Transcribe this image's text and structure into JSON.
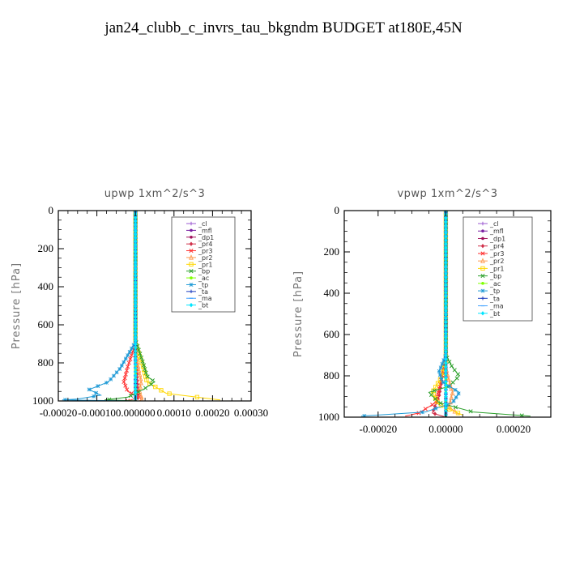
{
  "title": "jan24_clubb_c_invrs_tau_bkgndm  BUDGET at180E,45N",
  "chart_data": [
    {
      "type": "line",
      "panel_title": "upwp   1xm^2/s^3",
      "ylabel": "Pressure [hPa]",
      "ylim": [
        1000,
        0
      ],
      "xlim": [
        -0.0002,
        0.0003
      ],
      "xticks": [
        -0.0002,
        -0.0001,
        0.0,
        0.0001,
        0.0002,
        0.0003
      ],
      "xtick_labels": [
        "-0.00020",
        "-0.00010",
        "0.000000",
        "0.00010",
        "0.00020",
        "0.00030"
      ],
      "yticks": [
        0,
        200,
        400,
        600,
        800,
        1000
      ],
      "ytick_labels": [
        "0",
        "200",
        "400",
        "600",
        "800",
        "1000"
      ],
      "legend_position": "top-right",
      "series": [
        {
          "name": "_cl",
          "color": "#9b59d0",
          "marker": "plus",
          "points": [
            [
              0,
              0
            ],
            [
              0,
              1000
            ]
          ]
        },
        {
          "name": "_mfl",
          "color": "#7a1fa2",
          "marker": "dot",
          "points": [
            [
              0,
              0
            ],
            [
              0,
              1000
            ]
          ]
        },
        {
          "name": "_dp1",
          "color": "#a0105a",
          "marker": "dot",
          "points": [
            [
              0,
              0
            ],
            [
              0,
              1000
            ]
          ]
        },
        {
          "name": "_pr4",
          "color": "#d0304a",
          "marker": "diamond",
          "points": [
            [
              0,
              0
            ],
            [
              0,
              680
            ],
            [
              2e-06,
              760
            ],
            [
              5e-06,
              900
            ],
            [
              8e-06,
              980
            ],
            [
              0,
              1000
            ]
          ]
        },
        {
          "name": "_pr3",
          "color": "#ff3030",
          "marker": "cross",
          "points": [
            [
              0,
              0
            ],
            [
              0,
              700
            ],
            [
              -1e-05,
              760
            ],
            [
              -2e-05,
              820
            ],
            [
              -3e-05,
              900
            ],
            [
              -2e-05,
              950
            ],
            [
              1e-05,
              980
            ],
            [
              -2e-05,
              1000
            ]
          ]
        },
        {
          "name": "_pr2",
          "color": "#ff9a50",
          "marker": "tri",
          "points": [
            [
              0,
              0
            ],
            [
              0,
              700
            ],
            [
              5e-06,
              800
            ],
            [
              1.5e-05,
              900
            ],
            [
              1e-05,
              960
            ],
            [
              2e-05,
              990
            ],
            [
              1e-05,
              1000
            ]
          ]
        },
        {
          "name": "_pr1",
          "color": "#ffd700",
          "marker": "square",
          "points": [
            [
              0,
              0
            ],
            [
              0,
              690
            ],
            [
              1e-05,
              760
            ],
            [
              2e-05,
              820
            ],
            [
              3e-05,
              900
            ],
            [
              8e-05,
              960
            ],
            [
              0.00018,
              985
            ],
            [
              0.00022,
              995
            ]
          ]
        },
        {
          "name": "_bp",
          "color": "#2ca02c",
          "marker": "cross",
          "points": [
            [
              0,
              0
            ],
            [
              0,
              680
            ],
            [
              1e-05,
              740
            ],
            [
              2e-05,
              800
            ],
            [
              3e-05,
              870
            ],
            [
              5e-05,
              900
            ],
            [
              2e-05,
              940
            ],
            [
              -2e-05,
              980
            ],
            [
              -8e-05,
              995
            ],
            [
              1e-05,
              1000
            ]
          ]
        },
        {
          "name": "_ac",
          "color": "#7fff00",
          "marker": "dot",
          "points": [
            [
              0,
              0
            ],
            [
              0,
              1000
            ]
          ]
        },
        {
          "name": "_tp",
          "color": "#1f9ad6",
          "marker": "star",
          "points": [
            [
              0,
              0
            ],
            [
              0,
              690
            ],
            [
              -2e-05,
              760
            ],
            [
              -4e-05,
              830
            ],
            [
              -7e-05,
              900
            ],
            [
              -0.00012,
              940
            ],
            [
              -9e-05,
              970
            ],
            [
              -0.00015,
              990
            ],
            [
              -0.00019,
              995
            ],
            [
              0,
              1000
            ]
          ]
        },
        {
          "name": "_ta",
          "color": "#2040c0",
          "marker": "plus",
          "points": [
            [
              0,
              0
            ],
            [
              0,
              1000
            ]
          ]
        },
        {
          "name": "_ma",
          "color": "#40a0ff",
          "marker": "dash",
          "points": [
            [
              0,
              0
            ],
            [
              0,
              1000
            ]
          ]
        },
        {
          "name": "_bt",
          "color": "#00e5ff",
          "marker": "diamond",
          "points": [
            [
              0,
              0
            ],
            [
              0,
              1000
            ]
          ]
        }
      ]
    },
    {
      "type": "line",
      "panel_title": "vpwp   1xm^2/s^3",
      "ylabel": "Pressure [hPa]",
      "ylim": [
        1000,
        0
      ],
      "xlim": [
        -0.0003,
        0.00031
      ],
      "xticks": [
        -0.0002,
        0.0,
        0.0002
      ],
      "xtick_labels": [
        "-0.00020",
        "0.00000",
        "0.00020"
      ],
      "yticks": [
        0,
        200,
        400,
        600,
        800,
        1000
      ],
      "ytick_labels": [
        "0",
        "200",
        "400",
        "600",
        "800",
        "1000"
      ],
      "legend_position": "top-right",
      "series": [
        {
          "name": "_cl",
          "color": "#9b59d0",
          "marker": "plus",
          "points": [
            [
              0,
              0
            ],
            [
              0,
              1000
            ]
          ]
        },
        {
          "name": "_mfl",
          "color": "#7a1fa2",
          "marker": "dot",
          "points": [
            [
              0,
              0
            ],
            [
              0,
              1000
            ]
          ]
        },
        {
          "name": "_dp1",
          "color": "#a0105a",
          "marker": "dot",
          "points": [
            [
              0,
              0
            ],
            [
              0,
              1000
            ]
          ]
        },
        {
          "name": "_pr4",
          "color": "#d0304a",
          "marker": "diamond",
          "points": [
            [
              0,
              0
            ],
            [
              0,
              700
            ],
            [
              -1e-05,
              800
            ],
            [
              -2e-05,
              900
            ],
            [
              -4e-05,
              980
            ],
            [
              0,
              1000
            ]
          ]
        },
        {
          "name": "_pr3",
          "color": "#ff3030",
          "marker": "cross",
          "points": [
            [
              0,
              0
            ],
            [
              0,
              720
            ],
            [
              -1e-05,
              790
            ],
            [
              -2e-05,
              860
            ],
            [
              -3e-05,
              930
            ],
            [
              -8e-05,
              980
            ],
            [
              -0.00012,
              995
            ]
          ]
        },
        {
          "name": "_pr2",
          "color": "#ff9a50",
          "marker": "tri",
          "points": [
            [
              0,
              0
            ],
            [
              0,
              760
            ],
            [
              1e-05,
              830
            ],
            [
              2e-05,
              880
            ],
            [
              1e-05,
              950
            ],
            [
              4e-05,
              990
            ]
          ]
        },
        {
          "name": "_pr1",
          "color": "#ffd700",
          "marker": "square",
          "points": [
            [
              0,
              0
            ],
            [
              0,
              720
            ],
            [
              -1e-05,
              800
            ],
            [
              -4e-05,
              880
            ],
            [
              -2e-05,
              940
            ],
            [
              5e-05,
              990
            ]
          ]
        },
        {
          "name": "_bp",
          "color": "#2ca02c",
          "marker": "cross",
          "points": [
            [
              0,
              0
            ],
            [
              0,
              700
            ],
            [
              2e-05,
              760
            ],
            [
              4e-05,
              800
            ],
            [
              1e-05,
              850
            ],
            [
              -5e-05,
              880
            ],
            [
              -2e-05,
              930
            ],
            [
              8e-05,
              975
            ],
            [
              0.00025,
              995
            ]
          ]
        },
        {
          "name": "_ac",
          "color": "#7fff00",
          "marker": "dot",
          "points": [
            [
              0,
              0
            ],
            [
              0,
              1000
            ]
          ]
        },
        {
          "name": "_tp",
          "color": "#1f9ad6",
          "marker": "star",
          "points": [
            [
              0,
              0
            ],
            [
              0,
              700
            ],
            [
              -2e-05,
              780
            ],
            [
              -1e-05,
              830
            ],
            [
              4e-05,
              880
            ],
            [
              2e-05,
              930
            ],
            [
              -6e-05,
              975
            ],
            [
              -0.00025,
              995
            ]
          ]
        },
        {
          "name": "_ta",
          "color": "#2040c0",
          "marker": "plus",
          "points": [
            [
              0,
              0
            ],
            [
              0,
              1000
            ]
          ]
        },
        {
          "name": "_ma",
          "color": "#40a0ff",
          "marker": "dash",
          "points": [
            [
              0,
              0
            ],
            [
              0,
              1000
            ]
          ]
        },
        {
          "name": "_bt",
          "color": "#00e5ff",
          "marker": "diamond",
          "points": [
            [
              0,
              0
            ],
            [
              0,
              1000
            ]
          ]
        }
      ]
    }
  ]
}
